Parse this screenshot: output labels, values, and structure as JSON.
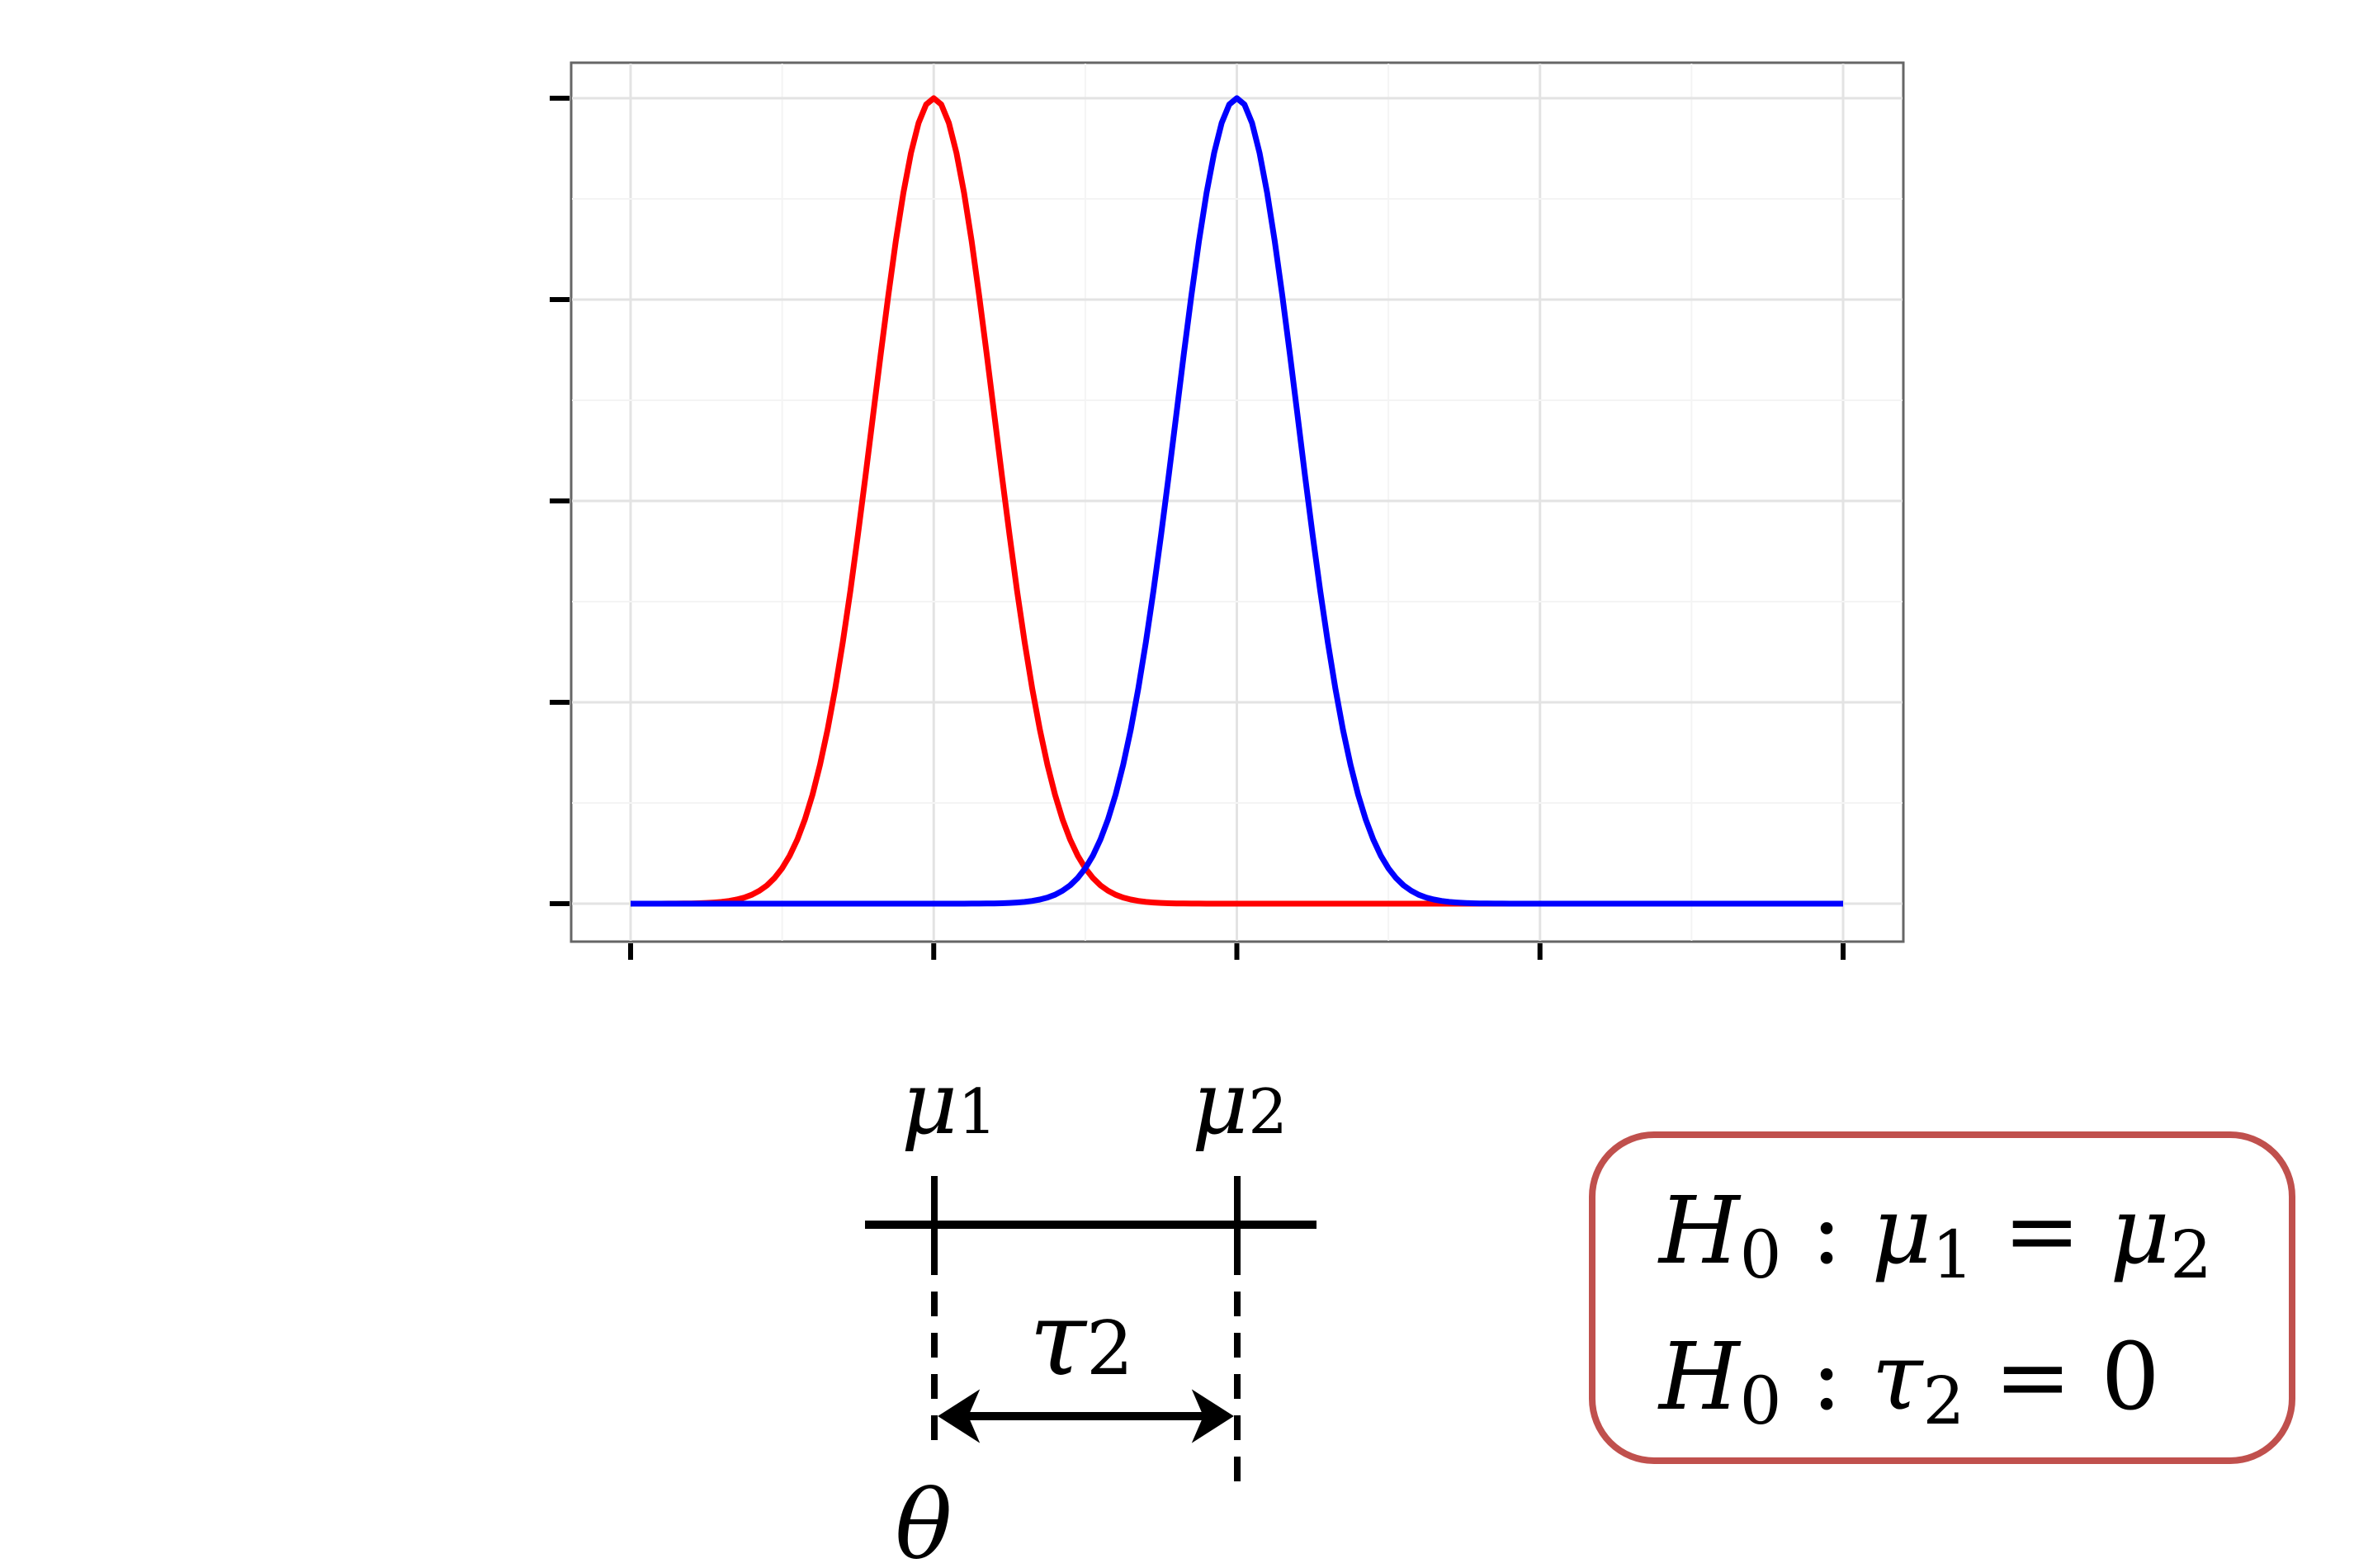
{
  "chart_data": {
    "type": "line",
    "x_ticks_count": 5,
    "y_ticks_count": 5,
    "tick_labels_shown": false,
    "grid": true,
    "xlim": [
      0,
      4
    ],
    "ylim": [
      0,
      1
    ],
    "series": [
      {
        "color": "#FF0000",
        "distribution": "normal",
        "mean": 1,
        "sd": 0.2,
        "peak": 1
      },
      {
        "color": "#0000FF",
        "distribution": "normal",
        "mean": 2,
        "sd": 0.2,
        "peak": 1
      }
    ]
  },
  "diagram": {
    "mu1": {
      "base": "μ",
      "sub": "1"
    },
    "mu2": {
      "base": "μ",
      "sub": "2"
    },
    "tau2": {
      "base": "τ",
      "sub": "2"
    },
    "theta": "θ",
    "box_color": "#C0504D",
    "hypothesis1": {
      "h": "H",
      "hsub": "0",
      "colon": " : ",
      "lhs": "μ",
      "lhssub": "1",
      "eq": " = ",
      "rhs": "μ",
      "rhssub": "2"
    },
    "hypothesis2": {
      "h": "H",
      "hsub": "0",
      "colon": " : ",
      "lhs": "τ",
      "lhssub": "2",
      "eq": " = ",
      "rhs": "0"
    }
  }
}
